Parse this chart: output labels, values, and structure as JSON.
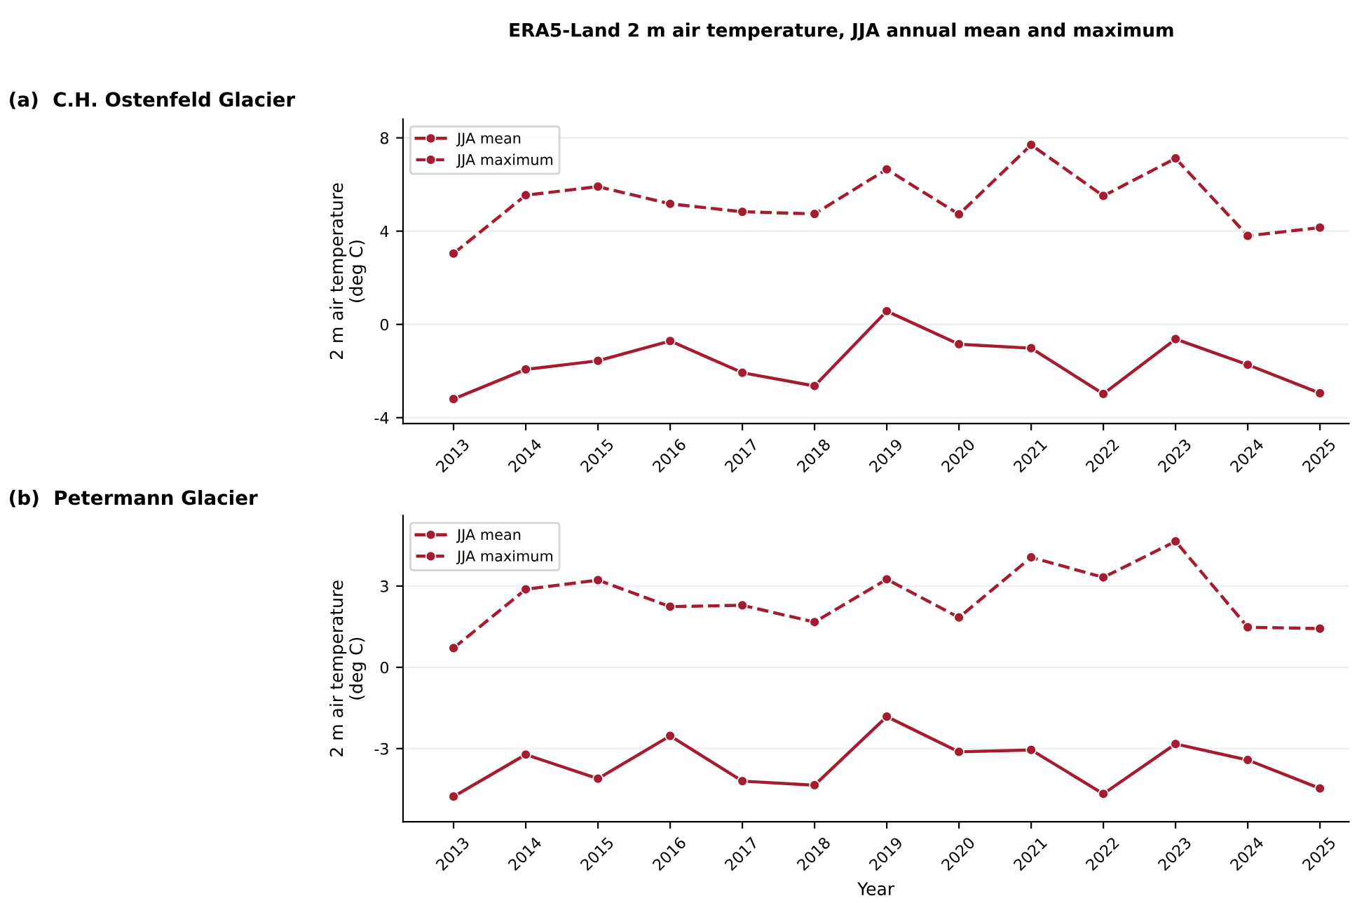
{
  "chart_data": [
    {
      "type": "line",
      "title": "(a)  C.H. Ostenfeld Glacier",
      "annotations": [
        "ERA5-Land 2 m air temperature, JJA annual mean and maximum"
      ],
      "ylabel": "2 m air temperature\n(deg C)",
      "categories": [
        "2013",
        "2014",
        "2015",
        "2016",
        "2017",
        "2018",
        "2019",
        "2020",
        "2021",
        "2022",
        "2023",
        "2024",
        "2025"
      ],
      "series": [
        {
          "name": "JJA mean",
          "color": "#a51c30",
          "line_style": "solid",
          "values": [
            -3.2,
            -1.93,
            -1.56,
            -0.71,
            -2.07,
            -2.64,
            0.57,
            -0.85,
            -1.02,
            -2.98,
            -0.63,
            -1.73,
            -2.95
          ]
        },
        {
          "name": "JJA maximum",
          "color": "#a51c30",
          "line_style": "dashed",
          "values": [
            3.04,
            5.54,
            5.91,
            5.17,
            4.83,
            4.74,
            6.65,
            4.72,
            7.7,
            5.51,
            7.12,
            3.8,
            4.15
          ]
        }
      ],
      "ylim": [
        -4.25,
        8.8
      ],
      "yticks": [
        -4,
        0,
        4,
        8
      ],
      "grid": "y",
      "legend": "top left",
      "marker": "circle"
    },
    {
      "type": "line",
      "title": "(b)  Petermann Glacier",
      "ylabel": "2 m air temperature\n(deg C)",
      "xlabel": "Year",
      "categories": [
        "2013",
        "2014",
        "2015",
        "2016",
        "2017",
        "2018",
        "2019",
        "2020",
        "2021",
        "2022",
        "2023",
        "2024",
        "2025"
      ],
      "series": [
        {
          "name": "JJA mean",
          "color": "#a51c30",
          "line_style": "solid",
          "values": [
            -4.77,
            -3.22,
            -4.11,
            -2.53,
            -4.2,
            -4.35,
            -1.82,
            -3.12,
            -3.05,
            -4.67,
            -2.83,
            -3.42,
            -4.47
          ]
        },
        {
          "name": "JJA maximum",
          "color": "#a51c30",
          "line_style": "dashed",
          "values": [
            0.71,
            2.88,
            3.22,
            2.24,
            2.29,
            1.67,
            3.25,
            1.84,
            4.06,
            3.32,
            4.65,
            1.48,
            1.43
          ]
        }
      ],
      "ylim": [
        -5.7,
        5.6
      ],
      "yticks": [
        -3,
        0,
        3
      ],
      "grid": "y",
      "legend": "top left",
      "marker": "circle"
    }
  ]
}
